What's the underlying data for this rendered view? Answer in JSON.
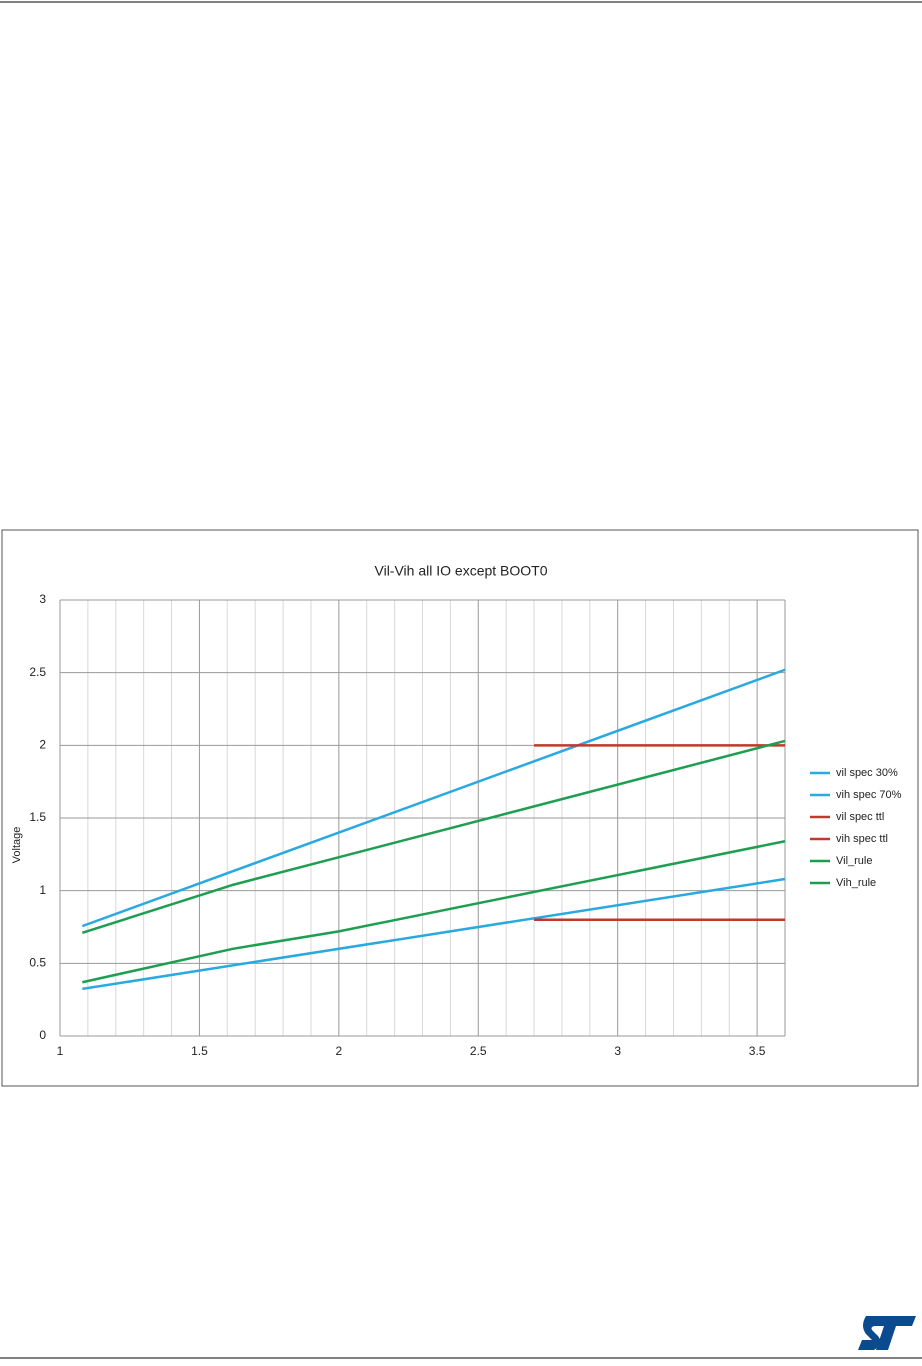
{
  "chart_data": {
    "type": "line",
    "title": "Vil-Vih all IO except BOOT0",
    "y_label": "Voltage",
    "xlim": [
      1,
      3.6
    ],
    "xticks": [
      1,
      1.5,
      2,
      2.5,
      3,
      3.5
    ],
    "xminorticks": [
      1.1,
      1.2,
      1.3,
      1.4,
      1.6,
      1.7,
      1.8,
      1.9,
      2.1,
      2.2,
      2.3,
      2.4,
      2.6,
      2.7,
      2.8,
      2.9,
      3.1,
      3.2,
      3.3,
      3.4
    ],
    "ylim": [
      0,
      3
    ],
    "yticks": [
      0,
      0.5,
      1,
      1.5,
      2,
      2.5,
      3
    ],
    "grid": true,
    "legend": "right",
    "series": [
      {
        "name": "vil spec 30%",
        "color": "#29a9e0",
        "x": [
          1.08,
          3.6
        ],
        "values": [
          0.324,
          1.08
        ]
      },
      {
        "name": "vih spec 70%",
        "color": "#29a9e0",
        "x": [
          1.08,
          3.6
        ],
        "values": [
          0.756,
          2.52
        ]
      },
      {
        "name": "vil spec ttl",
        "color": "#c0392b",
        "x": [
          2.7,
          3.6
        ],
        "values": [
          0.8,
          0.8
        ]
      },
      {
        "name": "vih spec ttl",
        "color": "#c0392b",
        "x": [
          2.7,
          3.6
        ],
        "values": [
          2,
          2
        ]
      },
      {
        "name": "Vil_rule",
        "color": "#1e9e50",
        "x": [
          1.08,
          1.62,
          2,
          3.6
        ],
        "values": [
          0.37,
          0.6,
          0.72,
          1.34
        ]
      },
      {
        "name": "Vih_rule",
        "color": "#1e9e50",
        "x": [
          1.08,
          1.62,
          3.6
        ],
        "values": [
          0.71,
          1.04,
          2.03
        ]
      }
    ]
  }
}
